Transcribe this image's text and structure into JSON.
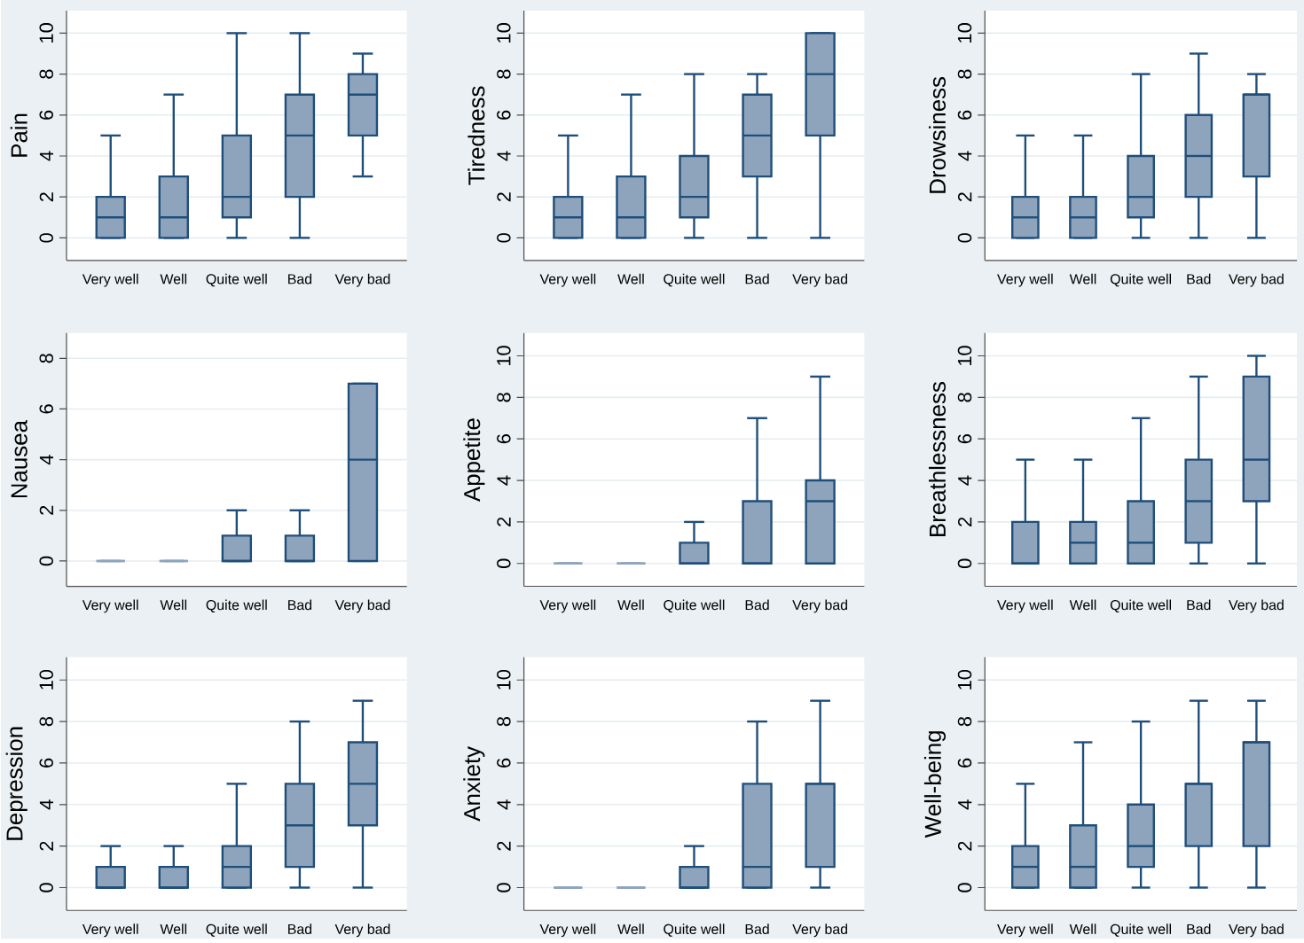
{
  "chart_data": [
    {
      "type": "box",
      "ylabel": "Pain",
      "categories": [
        "Very well",
        "Well",
        "Quite well",
        "Bad",
        "Very bad"
      ],
      "color": "#8ea4bd",
      "ylim": [
        -1.1,
        11.1
      ],
      "yticks": [
        0,
        2,
        4,
        6,
        8,
        10
      ],
      "grid": "y",
      "boxes": [
        {
          "low": 0,
          "q1": 0,
          "median": 1,
          "q3": 2,
          "high": 5
        },
        {
          "low": 0,
          "q1": 0,
          "median": 1,
          "q3": 3,
          "high": 7
        },
        {
          "low": 0,
          "q1": 1,
          "median": 2,
          "q3": 5,
          "high": 10
        },
        {
          "low": 0,
          "q1": 2,
          "median": 5,
          "q3": 7,
          "high": 10
        },
        {
          "low": 3,
          "q1": 5,
          "median": 7,
          "q3": 8,
          "high": 9
        }
      ]
    },
    {
      "type": "box",
      "ylabel": "Tiredness",
      "categories": [
        "Very well",
        "Well",
        "Quite well",
        "Bad",
        "Very bad"
      ],
      "color": "#8ea4bd",
      "ylim": [
        -1.1,
        11.1
      ],
      "yticks": [
        0,
        2,
        4,
        6,
        8,
        10
      ],
      "grid": "y",
      "boxes": [
        {
          "low": 0,
          "q1": 0,
          "median": 1,
          "q3": 2,
          "high": 5
        },
        {
          "low": 0,
          "q1": 0,
          "median": 1,
          "q3": 3,
          "high": 7
        },
        {
          "low": 0,
          "q1": 1,
          "median": 2,
          "q3": 4,
          "high": 8
        },
        {
          "low": 0,
          "q1": 3,
          "median": 5,
          "q3": 7,
          "high": 8
        },
        {
          "low": 0,
          "q1": 5,
          "median": 8,
          "q3": 10,
          "high": 10
        }
      ]
    },
    {
      "type": "box",
      "ylabel": "Drowsiness",
      "categories": [
        "Very well",
        "Well",
        "Quite well",
        "Bad",
        "Very bad"
      ],
      "color": "#8ea4bd",
      "ylim": [
        -1.1,
        11.1
      ],
      "yticks": [
        0,
        2,
        4,
        6,
        8,
        10
      ],
      "grid": "y",
      "boxes": [
        {
          "low": 0,
          "q1": 0,
          "median": 1,
          "q3": 2,
          "high": 5
        },
        {
          "low": 0,
          "q1": 0,
          "median": 1,
          "q3": 2,
          "high": 5
        },
        {
          "low": 0,
          "q1": 1,
          "median": 2,
          "q3": 4,
          "high": 8
        },
        {
          "low": 0,
          "q1": 2,
          "median": 4,
          "q3": 6,
          "high": 9
        },
        {
          "low": 0,
          "q1": 3,
          "median": 7,
          "q3": 7,
          "high": 8
        }
      ]
    },
    {
      "type": "box",
      "ylabel": "Nausea",
      "categories": [
        "Very well",
        "Well",
        "Quite well",
        "Bad",
        "Very bad"
      ],
      "color": "#8ea4bd",
      "ylim": [
        -1,
        9
      ],
      "yticks": [
        0,
        2,
        4,
        6,
        8
      ],
      "grid": "y",
      "boxes": [
        {
          "low": 0,
          "q1": 0,
          "median": 0,
          "q3": 0,
          "high": 0
        },
        {
          "low": 0,
          "q1": 0,
          "median": 0,
          "q3": 0,
          "high": 0
        },
        {
          "low": 0,
          "q1": 0,
          "median": 0,
          "q3": 1,
          "high": 2
        },
        {
          "low": 0,
          "q1": 0,
          "median": 0,
          "q3": 1,
          "high": 2
        },
        {
          "low": 0,
          "q1": 0,
          "median": 4,
          "q3": 7,
          "high": 7
        }
      ]
    },
    {
      "type": "box",
      "ylabel": "Appetite",
      "categories": [
        "Very well",
        "Well",
        "Quite well",
        "Bad",
        "Very bad"
      ],
      "color": "#8ea4bd",
      "ylim": [
        -1.1,
        11.1
      ],
      "yticks": [
        0,
        2,
        4,
        6,
        8,
        10
      ],
      "grid": "y",
      "boxes": [
        {
          "low": 0,
          "q1": 0,
          "median": 0,
          "q3": 0,
          "high": 0
        },
        {
          "low": 0,
          "q1": 0,
          "median": 0,
          "q3": 0,
          "high": 0
        },
        {
          "low": 0,
          "q1": 0,
          "median": 0,
          "q3": 1,
          "high": 2
        },
        {
          "low": 0,
          "q1": 0,
          "median": 0,
          "q3": 3,
          "high": 7
        },
        {
          "low": 0,
          "q1": 0,
          "median": 3,
          "q3": 4,
          "high": 9
        }
      ]
    },
    {
      "type": "box",
      "ylabel": "Breathlessness",
      "categories": [
        "Very well",
        "Well",
        "Quite well",
        "Bad",
        "Very bad"
      ],
      "color": "#8ea4bd",
      "ylim": [
        -1.1,
        11.1
      ],
      "yticks": [
        0,
        2,
        4,
        6,
        8,
        10
      ],
      "grid": "y",
      "boxes": [
        {
          "low": 0,
          "q1": 0,
          "median": 0,
          "q3": 2,
          "high": 5
        },
        {
          "low": 0,
          "q1": 0,
          "median": 1,
          "q3": 2,
          "high": 5
        },
        {
          "low": 0,
          "q1": 0,
          "median": 1,
          "q3": 3,
          "high": 7
        },
        {
          "low": 0,
          "q1": 1,
          "median": 3,
          "q3": 5,
          "high": 9
        },
        {
          "low": 0,
          "q1": 3,
          "median": 5,
          "q3": 9,
          "high": 10
        }
      ]
    },
    {
      "type": "box",
      "ylabel": "Depression",
      "categories": [
        "Very well",
        "Well",
        "Quite well",
        "Bad",
        "Very bad"
      ],
      "color": "#8ea4bd",
      "ylim": [
        -1.1,
        11.1
      ],
      "yticks": [
        0,
        2,
        4,
        6,
        8,
        10
      ],
      "grid": "y",
      "boxes": [
        {
          "low": 0,
          "q1": 0,
          "median": 0,
          "q3": 1,
          "high": 2
        },
        {
          "low": 0,
          "q1": 0,
          "median": 0,
          "q3": 1,
          "high": 2
        },
        {
          "low": 0,
          "q1": 0,
          "median": 1,
          "q3": 2,
          "high": 5
        },
        {
          "low": 0,
          "q1": 1,
          "median": 3,
          "q3": 5,
          "high": 8
        },
        {
          "low": 0,
          "q1": 3,
          "median": 5,
          "q3": 7,
          "high": 9
        }
      ]
    },
    {
      "type": "box",
      "ylabel": "Anxiety",
      "categories": [
        "Very well",
        "Well",
        "Quite well",
        "Bad",
        "Very bad"
      ],
      "color": "#8ea4bd",
      "ylim": [
        -1.1,
        11.1
      ],
      "yticks": [
        0,
        2,
        4,
        6,
        8,
        10
      ],
      "grid": "y",
      "boxes": [
        {
          "low": 0,
          "q1": 0,
          "median": 0,
          "q3": 0,
          "high": 0
        },
        {
          "low": 0,
          "q1": 0,
          "median": 0,
          "q3": 0,
          "high": 0
        },
        {
          "low": 0,
          "q1": 0,
          "median": 0,
          "q3": 1,
          "high": 2
        },
        {
          "low": 0,
          "q1": 0,
          "median": 1,
          "q3": 5,
          "high": 8
        },
        {
          "low": 0,
          "q1": 1,
          "median": 5,
          "q3": 5,
          "high": 9
        }
      ]
    },
    {
      "type": "box",
      "ylabel": "Well-being",
      "categories": [
        "Very well",
        "Well",
        "Quite well",
        "Bad",
        "Very bad"
      ],
      "color": "#8ea4bd",
      "ylim": [
        -1.1,
        11.1
      ],
      "yticks": [
        0,
        2,
        4,
        6,
        8,
        10
      ],
      "grid": "y",
      "boxes": [
        {
          "low": 0,
          "q1": 0,
          "median": 1,
          "q3": 2,
          "high": 5
        },
        {
          "low": 0,
          "q1": 0,
          "median": 1,
          "q3": 3,
          "high": 7
        },
        {
          "low": 0,
          "q1": 1,
          "median": 2,
          "q3": 4,
          "high": 8
        },
        {
          "low": 0,
          "q1": 2,
          "median": 5,
          "q3": 5,
          "high": 9
        },
        {
          "low": 0,
          "q1": 2,
          "median": 7,
          "q3": 7,
          "high": 9
        }
      ]
    }
  ]
}
